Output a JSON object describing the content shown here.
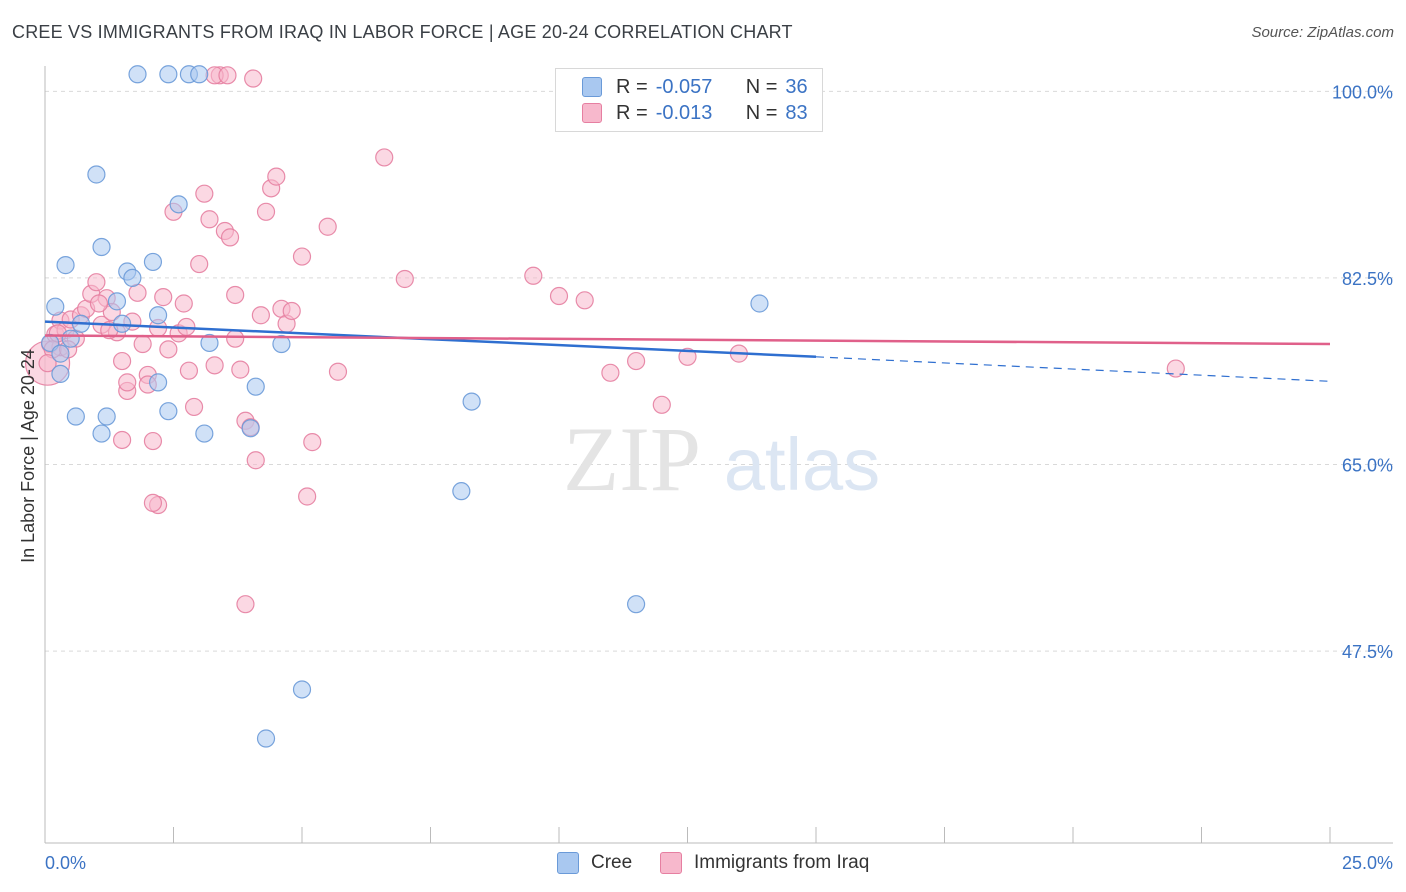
{
  "title": "CREE VS IMMIGRANTS FROM IRAQ IN LABOR FORCE | AGE 20-24 CORRELATION CHART",
  "source": "Source: ZipAtlas.com",
  "watermark": {
    "zip": "ZIP",
    "atlas": "atlas"
  },
  "legend": {
    "rows": [
      {
        "r_label": "R =",
        "r_value": "-0.057",
        "n_label": "N =",
        "n_value": "36"
      },
      {
        "r_label": "R =",
        "r_value": "-0.013",
        "n_label": "N =",
        "n_value": "83"
      }
    ]
  },
  "bottom_legend": [
    "Cree",
    "Immigrants from Iraq"
  ],
  "colors": {
    "cree_fill": "#a9c8f0",
    "cree_stroke": "#6a9ad8",
    "cree_line": "#2f6fd0",
    "iraq_fill": "#f7b8cc",
    "iraq_stroke": "#e67fa1",
    "iraq_line": "#e0608a",
    "axis_text": "#3b73c4",
    "grid": "#d9d9d9"
  },
  "chart_data": {
    "type": "scatter",
    "title": "CREE VS IMMIGRANTS FROM IRAQ IN LABOR FORCE | AGE 20-24 CORRELATION CHART",
    "xlabel": "",
    "ylabel": "In Labor Force | Age 20-24",
    "xlim": [
      0,
      25
    ],
    "ylim": [
      29.5,
      102
    ],
    "x_tick_labels": [
      "0.0%",
      "25.0%"
    ],
    "y_ticks": [
      47.5,
      65.0,
      82.5,
      100.0
    ],
    "y_tick_labels": [
      "47.5%",
      "65.0%",
      "82.5%",
      "100.0%"
    ],
    "series": [
      {
        "name": "Cree",
        "points": [
          [
            0.1,
            76.4
          ],
          [
            0.2,
            79.8
          ],
          [
            0.3,
            75.4
          ],
          [
            0.4,
            83.7
          ],
          [
            0.5,
            76.8
          ],
          [
            0.6,
            69.5
          ],
          [
            0.7,
            78.2
          ],
          [
            1.0,
            92.2
          ],
          [
            1.1,
            85.4
          ],
          [
            1.1,
            67.9
          ],
          [
            1.2,
            69.5
          ],
          [
            1.4,
            80.3
          ],
          [
            1.6,
            83.1
          ],
          [
            1.7,
            82.5
          ],
          [
            1.8,
            101.6
          ],
          [
            2.1,
            84.0
          ],
          [
            2.2,
            79.0
          ],
          [
            2.2,
            72.7
          ],
          [
            2.4,
            70.0
          ],
          [
            2.4,
            101.6
          ],
          [
            2.6,
            89.4
          ],
          [
            2.8,
            101.6
          ],
          [
            3.0,
            101.6
          ],
          [
            3.1,
            67.9
          ],
          [
            3.2,
            76.4
          ],
          [
            4.0,
            68.4
          ],
          [
            4.1,
            72.3
          ],
          [
            4.6,
            76.3
          ],
          [
            5.0,
            43.9
          ],
          [
            4.3,
            39.3
          ],
          [
            8.3,
            70.9
          ],
          [
            8.1,
            62.5
          ],
          [
            11.5,
            51.9
          ],
          [
            13.9,
            80.1
          ],
          [
            0.3,
            73.5
          ],
          [
            1.5,
            78.2
          ]
        ]
      },
      {
        "name": "Immigrants from Iraq",
        "points": [
          [
            0.05,
            74.5
          ],
          [
            0.1,
            76.3
          ],
          [
            0.2,
            77.2
          ],
          [
            0.3,
            78.5
          ],
          [
            0.3,
            76.0
          ],
          [
            0.4,
            77.6
          ],
          [
            0.5,
            78.6
          ],
          [
            0.6,
            76.8
          ],
          [
            0.7,
            79.0
          ],
          [
            0.8,
            79.6
          ],
          [
            0.9,
            81.0
          ],
          [
            1.0,
            82.1
          ],
          [
            1.1,
            78.1
          ],
          [
            1.2,
            80.6
          ],
          [
            1.3,
            79.3
          ],
          [
            1.4,
            77.4
          ],
          [
            1.5,
            74.7
          ],
          [
            1.5,
            67.3
          ],
          [
            1.6,
            71.9
          ],
          [
            1.7,
            78.4
          ],
          [
            1.8,
            81.1
          ],
          [
            1.9,
            76.3
          ],
          [
            2.0,
            73.4
          ],
          [
            2.0,
            72.5
          ],
          [
            2.1,
            67.2
          ],
          [
            2.2,
            77.8
          ],
          [
            2.2,
            61.2
          ],
          [
            2.3,
            80.7
          ],
          [
            2.4,
            75.8
          ],
          [
            2.5,
            88.7
          ],
          [
            2.6,
            77.3
          ],
          [
            2.7,
            80.1
          ],
          [
            2.8,
            73.8
          ],
          [
            2.9,
            70.4
          ],
          [
            3.0,
            83.8
          ],
          [
            3.1,
            90.4
          ],
          [
            3.2,
            88.0
          ],
          [
            3.3,
            74.3
          ],
          [
            3.4,
            101.5
          ],
          [
            3.5,
            86.9
          ],
          [
            3.6,
            86.3
          ],
          [
            3.7,
            80.9
          ],
          [
            3.8,
            73.9
          ],
          [
            3.9,
            69.1
          ],
          [
            4.0,
            68.5
          ],
          [
            4.1,
            65.4
          ],
          [
            4.2,
            79.0
          ],
          [
            4.3,
            88.7
          ],
          [
            4.4,
            90.9
          ],
          [
            4.5,
            92.0
          ],
          [
            4.6,
            79.6
          ],
          [
            4.7,
            78.2
          ],
          [
            4.8,
            79.4
          ],
          [
            5.0,
            84.5
          ],
          [
            5.1,
            62.0
          ],
          [
            5.2,
            67.1
          ],
          [
            5.5,
            87.3
          ],
          [
            5.7,
            73.7
          ],
          [
            6.6,
            93.8
          ],
          [
            7.0,
            82.4
          ],
          [
            9.5,
            82.7
          ],
          [
            10.0,
            80.8
          ],
          [
            10.5,
            80.4
          ],
          [
            11.0,
            73.6
          ],
          [
            11.5,
            74.7
          ],
          [
            12.0,
            70.6
          ],
          [
            12.5,
            75.1
          ],
          [
            13.5,
            75.4
          ],
          [
            22.0,
            74.0
          ],
          [
            0.15,
            75.8
          ],
          [
            0.25,
            77.3
          ],
          [
            0.45,
            75.8
          ],
          [
            1.05,
            80.1
          ],
          [
            1.25,
            77.6
          ],
          [
            1.6,
            72.7
          ],
          [
            2.1,
            61.4
          ],
          [
            3.3,
            101.5
          ],
          [
            3.55,
            101.5
          ],
          [
            4.05,
            101.2
          ],
          [
            3.7,
            76.8
          ],
          [
            2.75,
            77.9
          ],
          [
            3.9,
            51.9
          ],
          [
            0.05,
            74.5
          ]
        ]
      }
    ],
    "trend_lines": [
      {
        "series": "Cree",
        "from": [
          0,
          78.4
        ],
        "to": [
          15,
          75.1
        ],
        "dashed_to": [
          25,
          72.8
        ]
      },
      {
        "series": "Immigrants from Iraq",
        "from": [
          0,
          77.1
        ],
        "to": [
          25,
          76.3
        ]
      }
    ]
  }
}
